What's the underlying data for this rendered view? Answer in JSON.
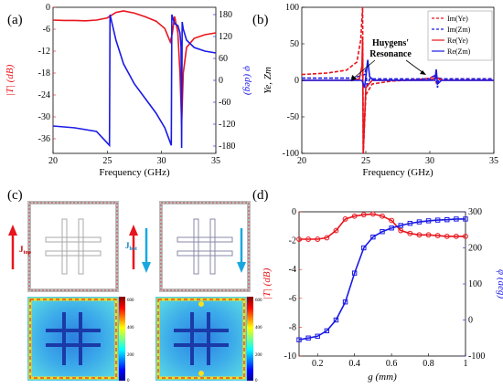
{
  "panels": {
    "a": {
      "label": "(a)"
    },
    "b": {
      "label": "(b)"
    },
    "c": {
      "label": "(c)"
    },
    "d": {
      "label": "(d)"
    }
  },
  "colors": {
    "red": "#e8141c",
    "blue": "#1a1ae6",
    "darkred": "#c00000",
    "cyan": "#18a8e0"
  },
  "chart_data": [
    {
      "panel": "a",
      "type": "line",
      "xlabel": "Frequency (GHz)",
      "ylabel_left": "|T| (dB)",
      "ylabel_right": "φ (deg)",
      "xlim": [
        20,
        35
      ],
      "ylim_left": [
        -40,
        0
      ],
      "ylim_right": [
        -200,
        200
      ],
      "xticks": [
        20,
        25,
        30,
        35
      ],
      "yticks_left": [
        0,
        -6,
        -12,
        -18,
        -24,
        -30,
        -36
      ],
      "yticks_right": [
        180,
        120,
        60,
        0,
        -60,
        -120,
        -180
      ],
      "series": [
        {
          "axis": "left",
          "color": "#e8141c",
          "x": [
            20,
            21,
            22,
            23,
            24,
            25,
            25.8,
            26.5,
            27.5,
            28.5,
            29.5,
            30.3,
            30.8,
            31.0,
            31.2,
            31.5,
            31.7,
            31.85,
            32.0,
            32.3,
            33,
            34,
            35
          ],
          "y": [
            -3.5,
            -3.6,
            -3.6,
            -3.7,
            -3.5,
            -2.9,
            -1.4,
            -1.0,
            -1.6,
            -2.6,
            -3.8,
            -5.8,
            -9.5,
            -7.0,
            -2.5,
            -7.0,
            -18,
            -32,
            -18,
            -11,
            -8.5,
            -7.5,
            -7.0
          ]
        },
        {
          "axis": "right",
          "color": "#1a1ae6",
          "x": [
            20,
            22,
            24,
            25.2,
            25.25,
            25.8,
            26.5,
            27.5,
            28.5,
            29.5,
            30.3,
            30.9,
            30.95,
            31.2,
            31.5,
            31.7,
            31.8,
            31.85,
            31.9,
            32.0,
            32.3,
            33,
            34,
            35
          ],
          "y": [
            -125,
            -130,
            -140,
            -178,
            180,
            110,
            45,
            -10,
            -50,
            -90,
            -130,
            -178,
            180,
            155,
            150,
            130,
            90,
            -185,
            160,
            140,
            110,
            90,
            80,
            75
          ]
        }
      ]
    },
    {
      "panel": "b",
      "type": "line",
      "xlabel": "Frequency (GHz)",
      "ylabel": "Ye, Zm",
      "xlim": [
        20,
        35
      ],
      "ylim": [
        -100,
        100
      ],
      "xticks": [
        20,
        25,
        30,
        35
      ],
      "yticks": [
        100,
        50,
        0,
        -50,
        -100
      ],
      "legend": [
        "Im(Ye)",
        "Im(Zm)",
        "Re(Ye)",
        "Re(Zm)"
      ],
      "annotation": [
        "Huygens'",
        "Resonance"
      ],
      "series": [
        {
          "name": "Im(Ye)",
          "color": "#e8141c",
          "dash": true,
          "x": [
            20,
            22,
            23.5,
            24.3,
            24.6,
            24.75,
            24.8,
            25.0,
            25.5,
            27,
            29,
            30,
            30.4,
            30.5,
            30.7,
            31.5,
            33,
            35
          ],
          "y": [
            8,
            10,
            14,
            25,
            55,
            100,
            -100,
            -20,
            -5,
            -1,
            1,
            3,
            7,
            -3,
            1,
            2,
            2,
            2
          ]
        },
        {
          "name": "Im(Zm)",
          "color": "#1a1ae6",
          "dash": true,
          "x": [
            20,
            24,
            24.9,
            25.0,
            25.1,
            25.3,
            27,
            30,
            30.5,
            30.6,
            30.7,
            31,
            33,
            35
          ],
          "y": [
            3,
            3,
            8,
            15,
            -10,
            2,
            2,
            2,
            8,
            -10,
            3,
            2,
            2,
            2
          ]
        },
        {
          "name": "Re(Ye)",
          "color": "#e8141c",
          "dash": false,
          "x": [
            20,
            24,
            24.5,
            24.7,
            24.75,
            24.8,
            25.0,
            25.5,
            30,
            30.5,
            31,
            35
          ],
          "y": [
            0,
            0,
            2,
            20,
            60,
            -100,
            -10,
            0,
            0,
            4,
            0,
            0
          ]
        },
        {
          "name": "Re(Zm)",
          "color": "#1a1ae6",
          "dash": false,
          "x": [
            20,
            24.7,
            24.9,
            25.0,
            25.15,
            25.3,
            25.6,
            30.4,
            30.5,
            30.6,
            30.9,
            35
          ],
          "y": [
            0,
            0,
            -10,
            5,
            28,
            5,
            0,
            0,
            15,
            -5,
            0,
            0
          ]
        }
      ]
    },
    {
      "panel": "d",
      "type": "line",
      "xlabel": "g (mm)",
      "ylabel_left": "|T| (dB)",
      "ylabel_right": "φ (deg)",
      "xlim": [
        0.1,
        1.0
      ],
      "ylim_left": [
        -10,
        0
      ],
      "ylim_right": [
        -100,
        300
      ],
      "xticks": [
        0.2,
        0.4,
        0.6,
        0.8,
        1
      ],
      "yticks_left": [
        0,
        -2,
        -4,
        -6,
        -8,
        -10
      ],
      "yticks_right": [
        300,
        200,
        100,
        0,
        -100
      ],
      "series": [
        {
          "axis": "left",
          "color": "#e8141c",
          "marker": "circle",
          "x": [
            0.1,
            0.15,
            0.2,
            0.25,
            0.3,
            0.35,
            0.4,
            0.45,
            0.5,
            0.55,
            0.6,
            0.65,
            0.7,
            0.75,
            0.8,
            0.85,
            0.9,
            0.95,
            1.0
          ],
          "y": [
            -1.9,
            -1.9,
            -1.9,
            -1.8,
            -1.3,
            -0.5,
            -0.3,
            -0.2,
            -0.15,
            -0.3,
            -0.6,
            -1.3,
            -1.5,
            -1.6,
            -1.6,
            -1.65,
            -1.7,
            -1.7,
            -1.7
          ]
        },
        {
          "axis": "right",
          "color": "#1a1ae6",
          "marker": "square",
          "x": [
            0.1,
            0.15,
            0.2,
            0.25,
            0.3,
            0.35,
            0.4,
            0.45,
            0.5,
            0.55,
            0.6,
            0.65,
            0.7,
            0.75,
            0.8,
            0.85,
            0.9,
            0.95,
            1.0
          ],
          "y": [
            -55,
            -50,
            -45,
            -30,
            0,
            50,
            130,
            200,
            230,
            245,
            255,
            262,
            268,
            272,
            275,
            277,
            278,
            280,
            280
          ]
        }
      ]
    }
  ],
  "panel_c": {
    "current_top_label": "J",
    "current_top_sub": "top",
    "current_bot_label": "J",
    "current_bot_sub": "bot",
    "colorbar_ticks": [
      "600",
      "400",
      "200",
      "0"
    ]
  }
}
